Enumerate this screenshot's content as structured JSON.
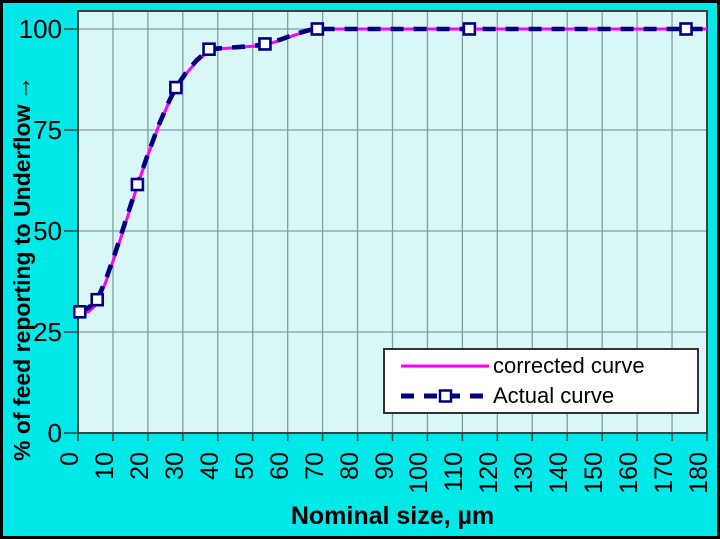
{
  "colors": {
    "background": "#00e8e8",
    "plot_background": "#daf7f7",
    "gridline": "#7f9e9e",
    "axis": "#404040",
    "corrected_curve": "#ff00ff",
    "actual_curve": "#00007f",
    "marker_fill": "#ffffff",
    "text": "#000000",
    "legend_background": "#ffffff",
    "frame": "#000000"
  },
  "y_axis": {
    "title": "% of feed reporting to Underflow",
    "arrow": "→",
    "tick_labels": [
      "100",
      "75",
      "50",
      "25",
      "0"
    ],
    "tick_values": [
      100,
      75,
      50,
      25,
      0
    ]
  },
  "x_axis": {
    "title": "Nominal size, µm",
    "tick_labels": [
      "0",
      "10",
      "20",
      "30",
      "40",
      "50",
      "60",
      "70",
      "80",
      "90",
      "100",
      "110",
      "120",
      "130",
      "140",
      "150",
      "160",
      "170",
      "180"
    ],
    "tick_values": [
      0,
      10,
      20,
      30,
      40,
      50,
      60,
      70,
      80,
      90,
      100,
      110,
      120,
      130,
      140,
      150,
      160,
      170,
      180
    ]
  },
  "legend": {
    "items": [
      {
        "label": "corrected curve",
        "style": "solid-line",
        "color": "#ff00ff"
      },
      {
        "label": "Actual curve",
        "style": "dashed-line-open-square",
        "color": "#00007f"
      }
    ]
  },
  "chart_data": {
    "type": "line",
    "title": "",
    "xlabel": "Nominal size, µm",
    "ylabel": "% of feed reporting to Underflow",
    "xlim": [
      0,
      180
    ],
    "ylim": [
      0,
      105
    ],
    "x_tick_step": 10,
    "y_gridlines": [
      25,
      50,
      75,
      100
    ],
    "grid": true,
    "legend_position": "inside-bottom-right",
    "series": [
      {
        "name": "corrected curve",
        "style": "solid",
        "color": "#ff00ff",
        "points": [
          [
            0,
            29.8
          ],
          [
            3,
            30
          ],
          [
            5.5,
            32
          ],
          [
            8,
            37.5
          ],
          [
            11,
            45
          ],
          [
            14,
            53
          ],
          [
            17,
            61.3
          ],
          [
            20,
            68.8
          ],
          [
            23,
            75.8
          ],
          [
            26,
            81.8
          ],
          [
            28,
            85
          ],
          [
            31,
            89
          ],
          [
            34,
            92
          ],
          [
            37.5,
            94.6
          ],
          [
            40,
            95.1
          ],
          [
            44,
            95.3
          ],
          [
            48,
            95.6
          ],
          [
            51,
            95.8
          ],
          [
            53.5,
            96.1
          ],
          [
            58,
            97.2
          ],
          [
            62,
            98.5
          ],
          [
            66,
            99.5
          ],
          [
            70,
            99.9
          ],
          [
            75,
            100
          ],
          [
            180,
            100
          ]
        ]
      },
      {
        "name": "Actual curve",
        "style": "dashed",
        "color": "#00007f",
        "marker": "open-square",
        "points": [
          [
            0.5,
            30
          ],
          [
            3,
            31
          ],
          [
            5.5,
            33
          ],
          [
            8,
            38
          ],
          [
            11,
            45.5
          ],
          [
            14,
            53.5
          ],
          [
            17,
            61.5
          ],
          [
            20,
            69
          ],
          [
            23,
            76
          ],
          [
            26,
            82
          ],
          [
            28,
            85.5
          ],
          [
            31,
            89.3
          ],
          [
            34,
            92.3
          ],
          [
            37.5,
            95
          ],
          [
            42,
            95.3
          ],
          [
            47,
            95.6
          ],
          [
            51,
            95.9
          ],
          [
            53.5,
            96.3
          ],
          [
            58,
            97.4
          ],
          [
            62,
            98.7
          ],
          [
            66,
            99.7
          ],
          [
            70,
            100
          ],
          [
            112,
            100
          ],
          [
            174,
            100
          ],
          [
            180,
            100
          ]
        ],
        "marker_points": [
          [
            0.5,
            30
          ],
          [
            5.5,
            33
          ],
          [
            17,
            61.5
          ],
          [
            28,
            85.5
          ],
          [
            37.5,
            95
          ],
          [
            53.5,
            96.3
          ],
          [
            68.5,
            100
          ],
          [
            112,
            100
          ],
          [
            174,
            100
          ]
        ]
      }
    ]
  }
}
